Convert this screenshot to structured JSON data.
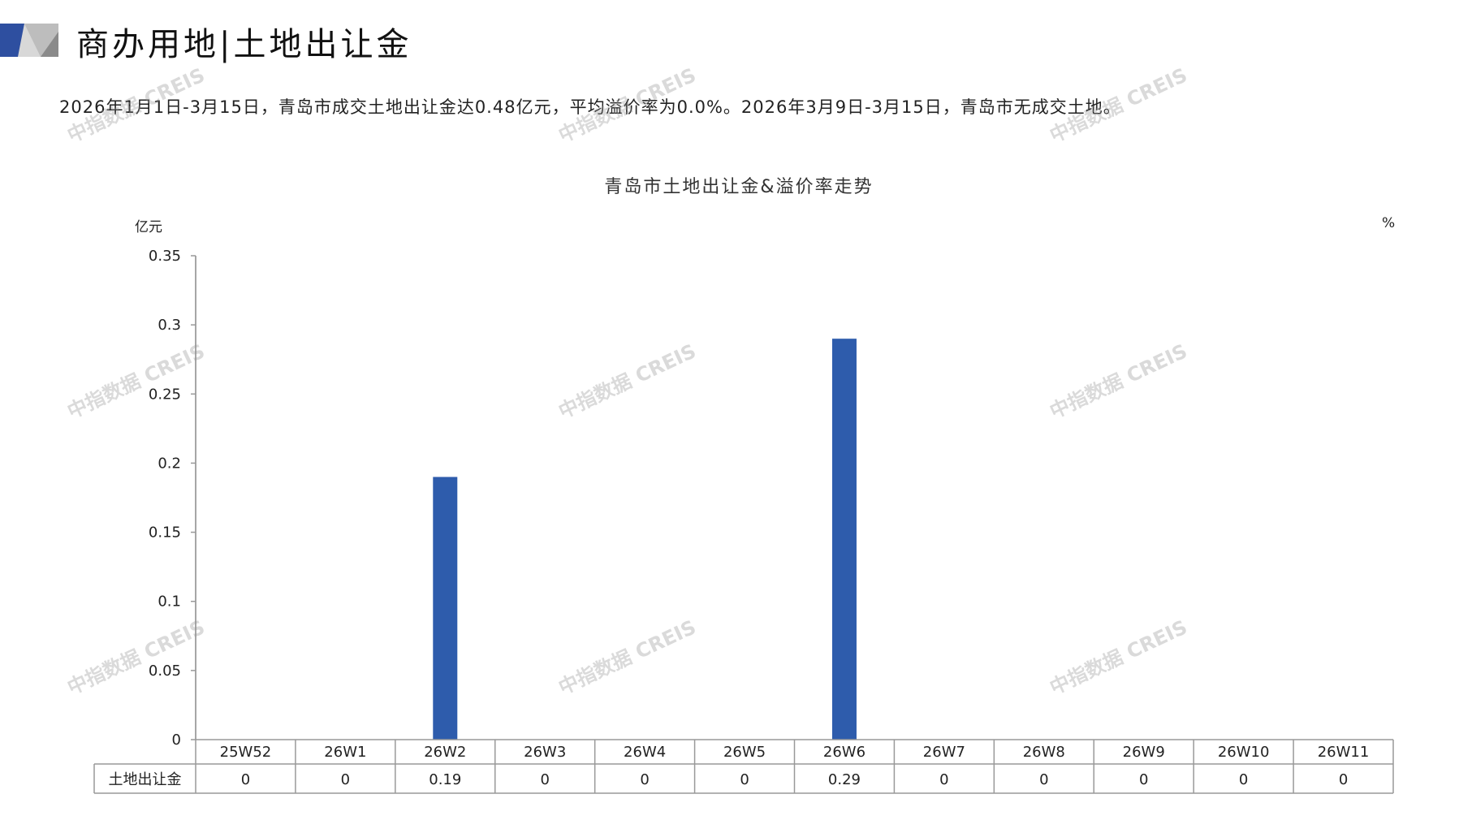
{
  "header": {
    "title": "商办用地|土地出让金",
    "summary": "2026年1月1日-3月15日，青岛市成交土地出让金达0.48亿元，平均溢价率为0.0%。2026年3月9日-3月15日，青岛市无成交土地。"
  },
  "watermark": "中指数据 CREIS",
  "colors": {
    "bar": "#2E5CAC",
    "axis": "#999999",
    "logo_blue": "#2E4FA0",
    "logo_grey": "#A8A8A8"
  },
  "chart_data": {
    "type": "bar",
    "title": "青岛市土地出让金&溢价率走势",
    "ylabel": "亿元",
    "y2label": "%",
    "ylim": [
      0,
      0.35
    ],
    "yticks": [
      "0",
      "0.05",
      "0.1",
      "0.15",
      "0.2",
      "0.25",
      "0.3",
      "0.35"
    ],
    "grid": false,
    "categories": [
      "25W52",
      "26W1",
      "26W2",
      "26W3",
      "26W4",
      "26W5",
      "26W6",
      "26W7",
      "26W8",
      "26W9",
      "26W10",
      "26W11"
    ],
    "series": [
      {
        "name": "土地出让金",
        "values": [
          0,
          0,
          0.19,
          0,
          0,
          0,
          0.29,
          0,
          0,
          0,
          0,
          0
        ]
      }
    ],
    "data_table": true
  }
}
